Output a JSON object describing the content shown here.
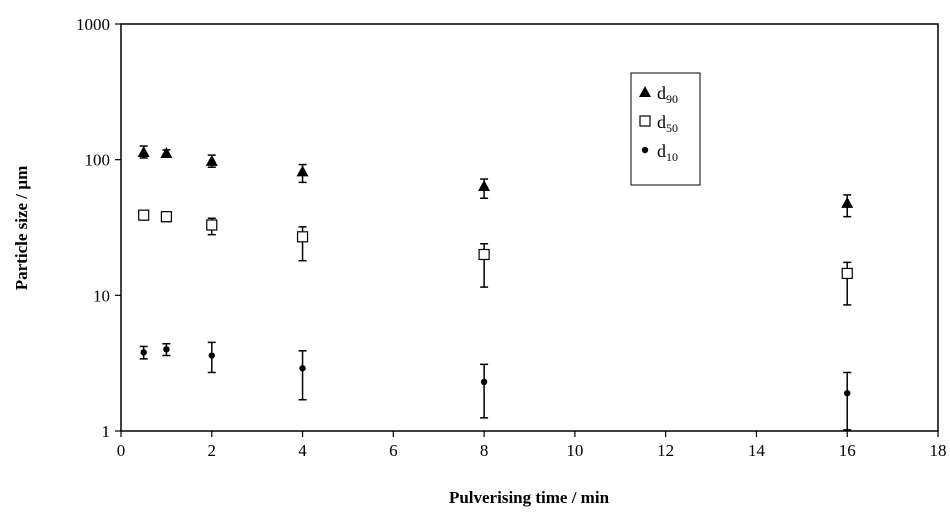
{
  "chart_data": {
    "type": "scatter",
    "xlabel": "Pulverising time / min",
    "ylabel": "Particle size / µm",
    "xlim": [
      0,
      18
    ],
    "ylim": [
      1,
      1000
    ],
    "y_scale": "log",
    "x_ticks": [
      0,
      2,
      4,
      6,
      8,
      10,
      12,
      14,
      16,
      18
    ],
    "y_ticks": [
      1,
      10,
      100,
      1000
    ],
    "x_tick_labels": [
      "0",
      "2",
      "4",
      "6",
      "8",
      "10",
      "12",
      "14",
      "16",
      "18"
    ],
    "y_tick_labels": [
      "1",
      "10",
      "100",
      "1000"
    ],
    "grid": false,
    "legend_position": "upper-center-right",
    "series": [
      {
        "name": "d90",
        "name_base": "d",
        "name_sub": "90",
        "marker": "filled-triangle",
        "points": [
          {
            "x": 0.5,
            "y": 114,
            "err_low": 103,
            "err_high": 126
          },
          {
            "x": 1,
            "y": 112,
            "err_low": 106,
            "err_high": 118
          },
          {
            "x": 2,
            "y": 98,
            "err_low": 88,
            "err_high": 108
          },
          {
            "x": 4,
            "y": 82,
            "err_low": 68,
            "err_high": 92
          },
          {
            "x": 8,
            "y": 64,
            "err_low": 52,
            "err_high": 72
          },
          {
            "x": 16,
            "y": 48,
            "err_low": 38,
            "err_high": 55
          }
        ]
      },
      {
        "name": "d50",
        "name_base": "d",
        "name_sub": "50",
        "marker": "open-square",
        "points": [
          {
            "x": 0.5,
            "y": 39,
            "err_low": 36,
            "err_high": 42
          },
          {
            "x": 1,
            "y": 38,
            "err_low": 35,
            "err_high": 40
          },
          {
            "x": 2,
            "y": 33,
            "err_low": 28,
            "err_high": 37
          },
          {
            "x": 4,
            "y": 27,
            "err_low": 18,
            "err_high": 32
          },
          {
            "x": 8,
            "y": 20,
            "err_low": 11.5,
            "err_high": 24
          },
          {
            "x": 16,
            "y": 14.5,
            "err_low": 8.5,
            "err_high": 17.5
          }
        ]
      },
      {
        "name": "d10",
        "name_base": "d",
        "name_sub": "10",
        "marker": "filled-circle",
        "points": [
          {
            "x": 0.5,
            "y": 3.8,
            "err_low": 3.4,
            "err_high": 4.2
          },
          {
            "x": 1,
            "y": 4.0,
            "err_low": 3.6,
            "err_high": 4.4
          },
          {
            "x": 2,
            "y": 3.6,
            "err_low": 2.7,
            "err_high": 4.5
          },
          {
            "x": 4,
            "y": 2.9,
            "err_low": 1.7,
            "err_high": 3.9
          },
          {
            "x": 8,
            "y": 2.3,
            "err_low": 1.25,
            "err_high": 3.1
          },
          {
            "x": 16,
            "y": 1.9,
            "err_low": 1.02,
            "err_high": 2.7
          }
        ]
      }
    ]
  }
}
